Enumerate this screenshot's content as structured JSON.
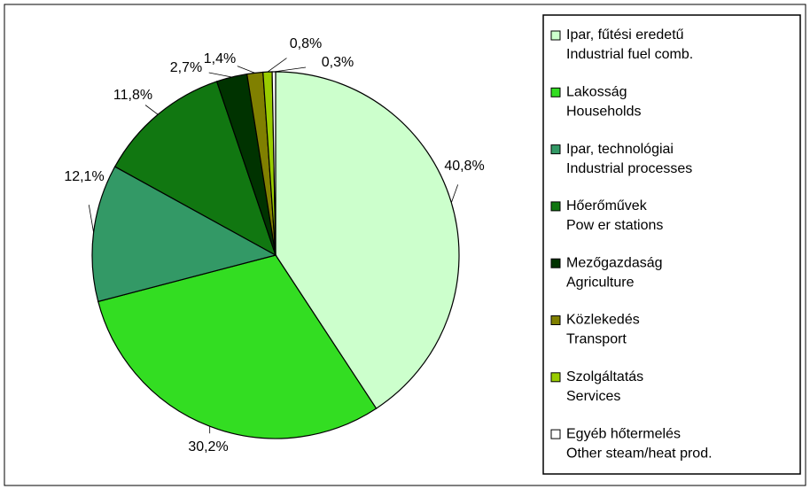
{
  "chart_data": {
    "type": "pie",
    "categories": [
      [
        "Ipar, fűtési eredetű",
        "Industrial fuel comb."
      ],
      [
        "Lakosság",
        "Households"
      ],
      [
        "Ipar, technológiai",
        "Industrial processes"
      ],
      [
        "Hőerőművek",
        "Pow er stations"
      ],
      [
        "Mezőgazdaság",
        "Agriculture"
      ],
      [
        "Közlekedés",
        "Transport"
      ],
      [
        "Szolgáltatás",
        "Services"
      ],
      [
        "Egyéb hőtermelés",
        "Other steam/heat prod."
      ]
    ],
    "values": [
      40.8,
      30.2,
      12.1,
      11.8,
      2.7,
      1.4,
      0.8,
      0.3
    ],
    "value_labels": [
      "40,8%",
      "30,2%",
      "12,1%",
      "11,8%",
      "2,7%",
      "1,4%",
      "0,8%",
      "0,3%"
    ],
    "colors": [
      "#ccffcc",
      "#33dd22",
      "#339966",
      "#117711",
      "#003300",
      "#808000",
      "#99cc00",
      "#ffffff"
    ],
    "legend": "right"
  }
}
